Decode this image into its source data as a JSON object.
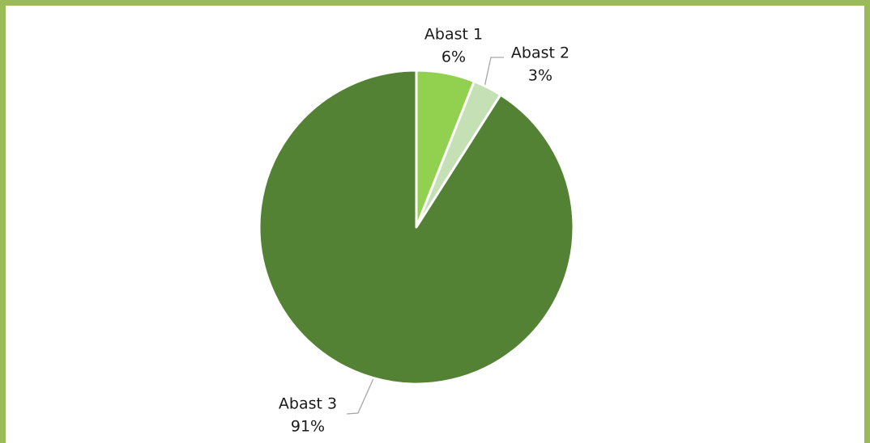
{
  "chart_data": {
    "type": "pie",
    "categories": [
      "Abast 1",
      "Abast 2",
      "Abast 3"
    ],
    "values": [
      6,
      3,
      91
    ],
    "value_labels": [
      "6%",
      "3%",
      "91%"
    ],
    "colors": [
      "#92d050",
      "#c5e0b4",
      "#548235"
    ]
  }
}
